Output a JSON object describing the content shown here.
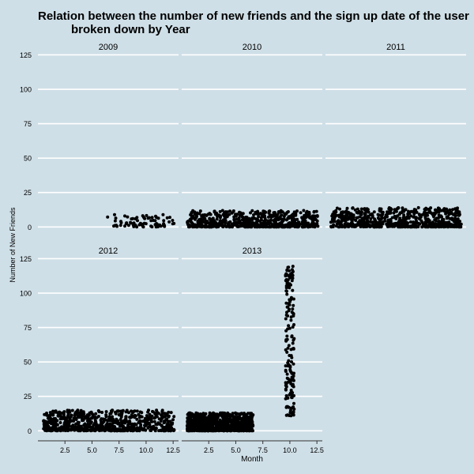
{
  "chart_data": {
    "type": "scatter",
    "title_lines": [
      "Relation between the number of new friends and the sign up date of the user",
      "broken down by Year"
    ],
    "xlabel": "Month",
    "ylabel": "Number of New Friends",
    "xlim": [
      0,
      13
    ],
    "ylim": [
      -5,
      127
    ],
    "xticks": [
      2.5,
      5.0,
      7.5,
      10.0,
      12.5
    ],
    "xtick_labels": [
      "2.5",
      "5.0",
      "7.5",
      "10.0",
      "12.5"
    ],
    "yticks": [
      0,
      25,
      50,
      75,
      100,
      125
    ],
    "ytick_labels": [
      "0",
      "25",
      "50",
      "75",
      "100",
      "125"
    ],
    "grid": true,
    "facets": [
      {
        "label": "2009",
        "clusters": [
          {
            "x_range": [
              6.2,
              7.6
            ],
            "y_range": [
              0,
              9
            ],
            "count": 8
          },
          {
            "x_range": [
              7.6,
              12.6
            ],
            "y_range": [
              0,
              9
            ],
            "count": 70
          }
        ]
      },
      {
        "label": "2010",
        "clusters": [
          {
            "x_range": [
              0.5,
              12.6
            ],
            "y_range": [
              0,
              12
            ],
            "count": 650
          }
        ]
      },
      {
        "label": "2011",
        "clusters": [
          {
            "x_range": [
              0.5,
              12.6
            ],
            "y_range": [
              0,
              14
            ],
            "count": 600
          }
        ]
      },
      {
        "label": "2012",
        "clusters": [
          {
            "x_range": [
              0.5,
              12.6
            ],
            "y_range": [
              0,
              15
            ],
            "count": 700
          }
        ]
      },
      {
        "label": "2013",
        "clusters": [
          {
            "x_range": [
              0.5,
              6.6
            ],
            "y_range": [
              0,
              13
            ],
            "count": 900
          },
          {
            "x_range": [
              9.6,
              10.4
            ],
            "y_range": [
              10,
              120
            ],
            "count": 160
          }
        ]
      }
    ]
  }
}
